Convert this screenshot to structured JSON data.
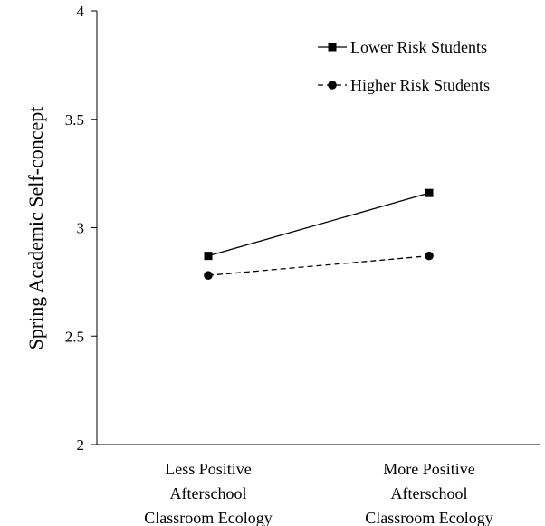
{
  "chart_data": {
    "type": "line",
    "title": "",
    "xlabel": "",
    "ylabel": "Spring Academic Self-concept",
    "ylim": [
      2,
      4
    ],
    "yticks": [
      "2",
      "2.5",
      "3",
      "3.5",
      "4"
    ],
    "yticks_values": [
      2,
      2.5,
      3,
      3.5,
      4
    ],
    "grid": false,
    "legend_position": "top-right",
    "categories": [
      [
        "Less Positive",
        "Afterschool",
        "Classroom Ecology"
      ],
      [
        "More Positive",
        "Afterschool",
        "Classroom Ecology"
      ]
    ],
    "series": [
      {
        "name": "Lower Risk Students",
        "values": [
          2.87,
          3.16
        ],
        "marker": "square",
        "line": "solid",
        "color": "#000000"
      },
      {
        "name": "Higher Risk Students",
        "values": [
          2.78,
          2.87
        ],
        "marker": "circle",
        "line": "dashed",
        "color": "#000000"
      }
    ]
  }
}
